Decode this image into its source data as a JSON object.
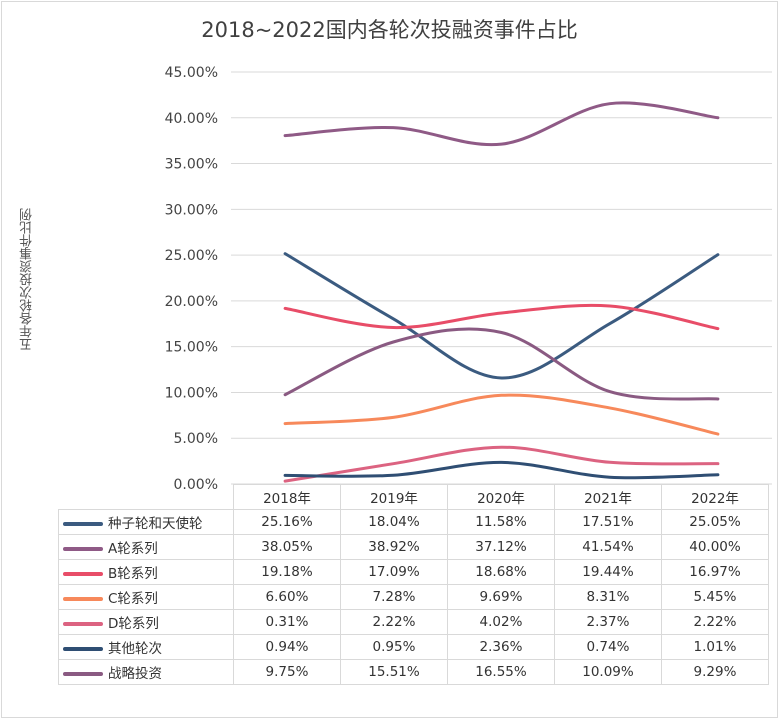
{
  "chart_data": {
    "type": "line",
    "title": "2018~2022国内各轮次投融资事件占比",
    "ylabel": "五年各轮次投资事件比例",
    "xlabel": "",
    "ylim": [
      0,
      45
    ],
    "y_ticks": [
      "0.00%",
      "5.00%",
      "10.00%",
      "15.00%",
      "20.00%",
      "25.00%",
      "30.00%",
      "35.00%",
      "40.00%",
      "45.00%"
    ],
    "categories": [
      "2018年",
      "2019年",
      "2020年",
      "2021年",
      "2022年"
    ],
    "grid": true,
    "legend_placement": "data-table",
    "series": [
      {
        "name": "种子轮和天使轮",
        "color": "#3b5b80",
        "values": [
          25.16,
          18.04,
          11.58,
          17.51,
          25.05
        ],
        "labels": [
          "25.16%",
          "18.04%",
          "11.58%",
          "17.51%",
          "25.05%"
        ]
      },
      {
        "name": "A轮系列",
        "color": "#8f5a86",
        "values": [
          38.05,
          38.92,
          37.12,
          41.54,
          40.0
        ],
        "labels": [
          "38.05%",
          "38.92%",
          "37.12%",
          "41.54%",
          "40.00%"
        ]
      },
      {
        "name": "B轮系列",
        "color": "#e84d68",
        "values": [
          19.18,
          17.09,
          18.68,
          19.44,
          16.97
        ],
        "labels": [
          "19.18%",
          "17.09%",
          "18.68%",
          "19.44%",
          "16.97%"
        ]
      },
      {
        "name": "C轮系列",
        "color": "#f7895b",
        "values": [
          6.6,
          7.28,
          9.69,
          8.31,
          5.45
        ],
        "labels": [
          "6.60%",
          "7.28%",
          "9.69%",
          "8.31%",
          "5.45%"
        ]
      },
      {
        "name": "D轮系列",
        "color": "#dc6381",
        "values": [
          0.31,
          2.22,
          4.02,
          2.37,
          2.22
        ],
        "labels": [
          "0.31%",
          "2.22%",
          "4.02%",
          "2.37%",
          "2.22%"
        ]
      },
      {
        "name": "其他轮次",
        "color": "#2f4e73",
        "values": [
          0.94,
          0.95,
          2.36,
          0.74,
          1.01
        ],
        "labels": [
          "0.94%",
          "0.95%",
          "2.36%",
          "0.74%",
          "1.01%"
        ]
      },
      {
        "name": "战略投资",
        "color": "#8a5a82",
        "values": [
          9.75,
          15.51,
          16.55,
          10.09,
          9.29
        ],
        "labels": [
          "9.75%",
          "15.51%",
          "16.55%",
          "10.09%",
          "9.29%"
        ]
      }
    ]
  }
}
